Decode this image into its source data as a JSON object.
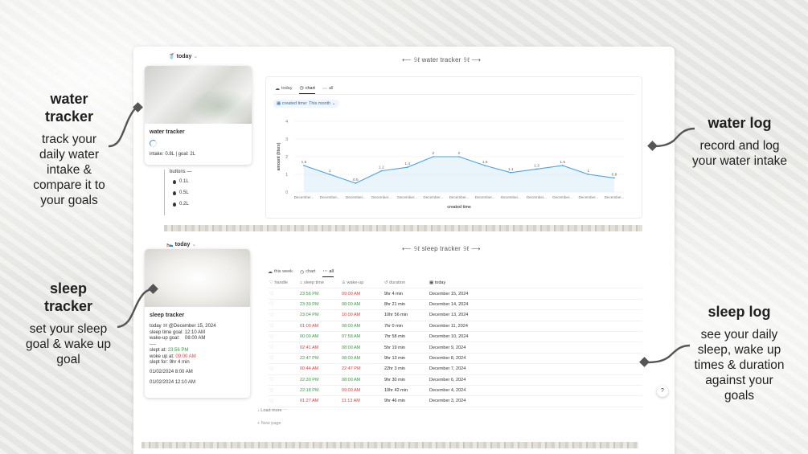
{
  "annotations": {
    "water_tracker": {
      "title_line1": "water",
      "title_line2": "tracker",
      "desc": [
        "track your",
        "daily water",
        "intake &",
        "compare it to",
        "your goals"
      ]
    },
    "water_log": {
      "title": "water log",
      "desc": [
        "record and log",
        "your water intake"
      ]
    },
    "sleep_tracker": {
      "title_line1": "sleep",
      "title_line2": "tracker",
      "desc": [
        "set your sleep",
        "goal & wake up",
        "goal"
      ]
    },
    "sleep_log": {
      "title": "sleep log",
      "desc": [
        "see your daily",
        "sleep, wake up",
        "times & duration",
        "against your",
        "goals"
      ]
    }
  },
  "water": {
    "today_tag": "today",
    "section_title": "⟵ 𝟿ℓ water tracker 𝟿ℓ ⟶",
    "card_title": "water tracker",
    "intake_text": "intake: 0.8L | goal: 2L",
    "buttons_header": "buttons —",
    "buttons": [
      "0.1L",
      "0.5L",
      "0.2L"
    ],
    "tabs": [
      "today",
      "chart",
      "all"
    ],
    "active_tab": "chart",
    "filter": "created time: This month"
  },
  "chart_data": {
    "type": "area",
    "xlabel": "created time",
    "ylabel": "amount (liters)",
    "ylim": [
      0,
      4
    ],
    "yticks": [
      0,
      1,
      2,
      3,
      4
    ],
    "categories": [
      "December...",
      "December...",
      "December...",
      "December...",
      "December...",
      "December...",
      "December...",
      "December...",
      "December...",
      "December...",
      "December...",
      "December...",
      "December..."
    ],
    "values": [
      1.5,
      1,
      0.5,
      1.2,
      1.4,
      2,
      2,
      1.5,
      1.1,
      1.3,
      1.5,
      1,
      0.8
    ],
    "color": "#4aa3e0",
    "grid": true
  },
  "sleep": {
    "today_tag": "today",
    "section_title": "⟵ 𝟿ℓ sleep tracker 𝟿ℓ ⟶",
    "card_title": "sleep tracker",
    "card_lines": {
      "today": "today 𝟿ℓ @December 15, 2024",
      "sleep_goal": "sleep time goal: 12:10 AM",
      "wake_goal": "wake-up goal:    08:00 AM",
      "divider": "----",
      "slept_at_label": "slept at:",
      "slept_at_value": "23:56 PM",
      "woke_up_label": "woke up at:",
      "woke_up_value": "09:00 AM",
      "slept_for_label": "slept for:",
      "slept_for_value": "9hr 4 min",
      "date1": "01/02/2024 8:00 AM",
      "date2": "01/02/2024 12:10 AM"
    },
    "tabs": [
      "this week",
      "chart",
      "all"
    ],
    "active_tab": "all",
    "columns": [
      "handle",
      "sleep time",
      "wake-up",
      "duration",
      "today"
    ],
    "rows": [
      {
        "sleep": "23:56 PM",
        "sleep_ok": true,
        "wake": "09:00 AM",
        "wake_ok": false,
        "duration": "9hr 4 min",
        "date": "December 15, 2024"
      },
      {
        "sleep": "23:39 PM",
        "sleep_ok": true,
        "wake": "08:00 AM",
        "wake_ok": true,
        "duration": "8hr 21 min",
        "date": "December 14, 2024"
      },
      {
        "sleep": "23:04 PM",
        "sleep_ok": true,
        "wake": "10:00 AM",
        "wake_ok": false,
        "duration": "10hr 56 min",
        "date": "December 13, 2024"
      },
      {
        "sleep": "01:00 AM",
        "sleep_ok": false,
        "wake": "08:00 AM",
        "wake_ok": true,
        "duration": "7hr 0 min",
        "date": "December 11, 2024"
      },
      {
        "sleep": "00:00 AM",
        "sleep_ok": true,
        "wake": "07:58 AM",
        "wake_ok": true,
        "duration": "7hr 58 min",
        "date": "December 10, 2024"
      },
      {
        "sleep": "02:41 AM",
        "sleep_ok": false,
        "wake": "08:00 AM",
        "wake_ok": true,
        "duration": "5hr 19 min",
        "date": "December 9, 2024"
      },
      {
        "sleep": "22:47 PM",
        "sleep_ok": true,
        "wake": "08:00 AM",
        "wake_ok": true,
        "duration": "9hr 13 min",
        "date": "December 8, 2024"
      },
      {
        "sleep": "00:44 AM",
        "sleep_ok": false,
        "wake": "22:47 PM",
        "wake_ok": false,
        "duration": "22hr 3 min",
        "date": "December 7, 2024"
      },
      {
        "sleep": "22:30 PM",
        "sleep_ok": true,
        "wake": "08:00 AM",
        "wake_ok": true,
        "duration": "9hr 30 min",
        "date": "December 6, 2024"
      },
      {
        "sleep": "22:18 PM",
        "sleep_ok": true,
        "wake": "09:00 AM",
        "wake_ok": false,
        "duration": "10hr 42 min",
        "date": "December 4, 2024"
      },
      {
        "sleep": "01:27 AM",
        "sleep_ok": false,
        "wake": "11:13 AM",
        "wake_ok": false,
        "duration": "9hr 46 min",
        "date": "December 3, 2024"
      }
    ],
    "load_more": "↓ Load more",
    "new_page": "+ New page"
  },
  "colors": {
    "good": "#3a9a4a",
    "bad": "#d64545",
    "accent": "#4aa3e0"
  }
}
